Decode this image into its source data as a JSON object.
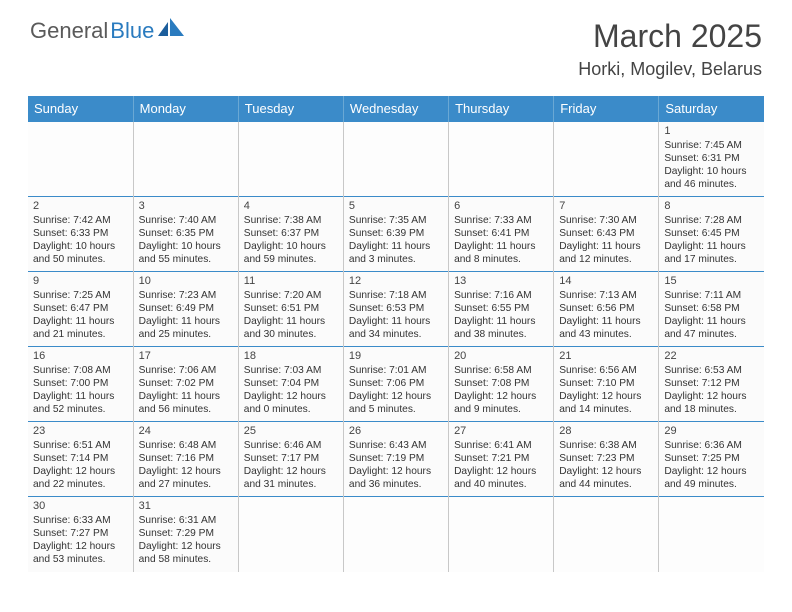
{
  "logo": {
    "part1": "General",
    "part2": "Blue"
  },
  "title": "March 2025",
  "location": "Horki, Mogilev, Belarus",
  "accent_color": "#3b8bc9",
  "days_header": [
    "Sunday",
    "Monday",
    "Tuesday",
    "Wednesday",
    "Thursday",
    "Friday",
    "Saturday"
  ],
  "weeks": [
    [
      null,
      null,
      null,
      null,
      null,
      null,
      {
        "n": "1",
        "sunrise": "Sunrise: 7:45 AM",
        "sunset": "Sunset: 6:31 PM",
        "day1": "Daylight: 10 hours",
        "day2": "and 46 minutes."
      }
    ],
    [
      {
        "n": "2",
        "sunrise": "Sunrise: 7:42 AM",
        "sunset": "Sunset: 6:33 PM",
        "day1": "Daylight: 10 hours",
        "day2": "and 50 minutes."
      },
      {
        "n": "3",
        "sunrise": "Sunrise: 7:40 AM",
        "sunset": "Sunset: 6:35 PM",
        "day1": "Daylight: 10 hours",
        "day2": "and 55 minutes."
      },
      {
        "n": "4",
        "sunrise": "Sunrise: 7:38 AM",
        "sunset": "Sunset: 6:37 PM",
        "day1": "Daylight: 10 hours",
        "day2": "and 59 minutes."
      },
      {
        "n": "5",
        "sunrise": "Sunrise: 7:35 AM",
        "sunset": "Sunset: 6:39 PM",
        "day1": "Daylight: 11 hours",
        "day2": "and 3 minutes."
      },
      {
        "n": "6",
        "sunrise": "Sunrise: 7:33 AM",
        "sunset": "Sunset: 6:41 PM",
        "day1": "Daylight: 11 hours",
        "day2": "and 8 minutes."
      },
      {
        "n": "7",
        "sunrise": "Sunrise: 7:30 AM",
        "sunset": "Sunset: 6:43 PM",
        "day1": "Daylight: 11 hours",
        "day2": "and 12 minutes."
      },
      {
        "n": "8",
        "sunrise": "Sunrise: 7:28 AM",
        "sunset": "Sunset: 6:45 PM",
        "day1": "Daylight: 11 hours",
        "day2": "and 17 minutes."
      }
    ],
    [
      {
        "n": "9",
        "sunrise": "Sunrise: 7:25 AM",
        "sunset": "Sunset: 6:47 PM",
        "day1": "Daylight: 11 hours",
        "day2": "and 21 minutes."
      },
      {
        "n": "10",
        "sunrise": "Sunrise: 7:23 AM",
        "sunset": "Sunset: 6:49 PM",
        "day1": "Daylight: 11 hours",
        "day2": "and 25 minutes."
      },
      {
        "n": "11",
        "sunrise": "Sunrise: 7:20 AM",
        "sunset": "Sunset: 6:51 PM",
        "day1": "Daylight: 11 hours",
        "day2": "and 30 minutes."
      },
      {
        "n": "12",
        "sunrise": "Sunrise: 7:18 AM",
        "sunset": "Sunset: 6:53 PM",
        "day1": "Daylight: 11 hours",
        "day2": "and 34 minutes."
      },
      {
        "n": "13",
        "sunrise": "Sunrise: 7:16 AM",
        "sunset": "Sunset: 6:55 PM",
        "day1": "Daylight: 11 hours",
        "day2": "and 38 minutes."
      },
      {
        "n": "14",
        "sunrise": "Sunrise: 7:13 AM",
        "sunset": "Sunset: 6:56 PM",
        "day1": "Daylight: 11 hours",
        "day2": "and 43 minutes."
      },
      {
        "n": "15",
        "sunrise": "Sunrise: 7:11 AM",
        "sunset": "Sunset: 6:58 PM",
        "day1": "Daylight: 11 hours",
        "day2": "and 47 minutes."
      }
    ],
    [
      {
        "n": "16",
        "sunrise": "Sunrise: 7:08 AM",
        "sunset": "Sunset: 7:00 PM",
        "day1": "Daylight: 11 hours",
        "day2": "and 52 minutes."
      },
      {
        "n": "17",
        "sunrise": "Sunrise: 7:06 AM",
        "sunset": "Sunset: 7:02 PM",
        "day1": "Daylight: 11 hours",
        "day2": "and 56 minutes."
      },
      {
        "n": "18",
        "sunrise": "Sunrise: 7:03 AM",
        "sunset": "Sunset: 7:04 PM",
        "day1": "Daylight: 12 hours",
        "day2": "and 0 minutes."
      },
      {
        "n": "19",
        "sunrise": "Sunrise: 7:01 AM",
        "sunset": "Sunset: 7:06 PM",
        "day1": "Daylight: 12 hours",
        "day2": "and 5 minutes."
      },
      {
        "n": "20",
        "sunrise": "Sunrise: 6:58 AM",
        "sunset": "Sunset: 7:08 PM",
        "day1": "Daylight: 12 hours",
        "day2": "and 9 minutes."
      },
      {
        "n": "21",
        "sunrise": "Sunrise: 6:56 AM",
        "sunset": "Sunset: 7:10 PM",
        "day1": "Daylight: 12 hours",
        "day2": "and 14 minutes."
      },
      {
        "n": "22",
        "sunrise": "Sunrise: 6:53 AM",
        "sunset": "Sunset: 7:12 PM",
        "day1": "Daylight: 12 hours",
        "day2": "and 18 minutes."
      }
    ],
    [
      {
        "n": "23",
        "sunrise": "Sunrise: 6:51 AM",
        "sunset": "Sunset: 7:14 PM",
        "day1": "Daylight: 12 hours",
        "day2": "and 22 minutes."
      },
      {
        "n": "24",
        "sunrise": "Sunrise: 6:48 AM",
        "sunset": "Sunset: 7:16 PM",
        "day1": "Daylight: 12 hours",
        "day2": "and 27 minutes."
      },
      {
        "n": "25",
        "sunrise": "Sunrise: 6:46 AM",
        "sunset": "Sunset: 7:17 PM",
        "day1": "Daylight: 12 hours",
        "day2": "and 31 minutes."
      },
      {
        "n": "26",
        "sunrise": "Sunrise: 6:43 AM",
        "sunset": "Sunset: 7:19 PM",
        "day1": "Daylight: 12 hours",
        "day2": "and 36 minutes."
      },
      {
        "n": "27",
        "sunrise": "Sunrise: 6:41 AM",
        "sunset": "Sunset: 7:21 PM",
        "day1": "Daylight: 12 hours",
        "day2": "and 40 minutes."
      },
      {
        "n": "28",
        "sunrise": "Sunrise: 6:38 AM",
        "sunset": "Sunset: 7:23 PM",
        "day1": "Daylight: 12 hours",
        "day2": "and 44 minutes."
      },
      {
        "n": "29",
        "sunrise": "Sunrise: 6:36 AM",
        "sunset": "Sunset: 7:25 PM",
        "day1": "Daylight: 12 hours",
        "day2": "and 49 minutes."
      }
    ],
    [
      {
        "n": "30",
        "sunrise": "Sunrise: 6:33 AM",
        "sunset": "Sunset: 7:27 PM",
        "day1": "Daylight: 12 hours",
        "day2": "and 53 minutes."
      },
      {
        "n": "31",
        "sunrise": "Sunrise: 6:31 AM",
        "sunset": "Sunset: 7:29 PM",
        "day1": "Daylight: 12 hours",
        "day2": "and 58 minutes."
      },
      null,
      null,
      null,
      null,
      null
    ]
  ]
}
